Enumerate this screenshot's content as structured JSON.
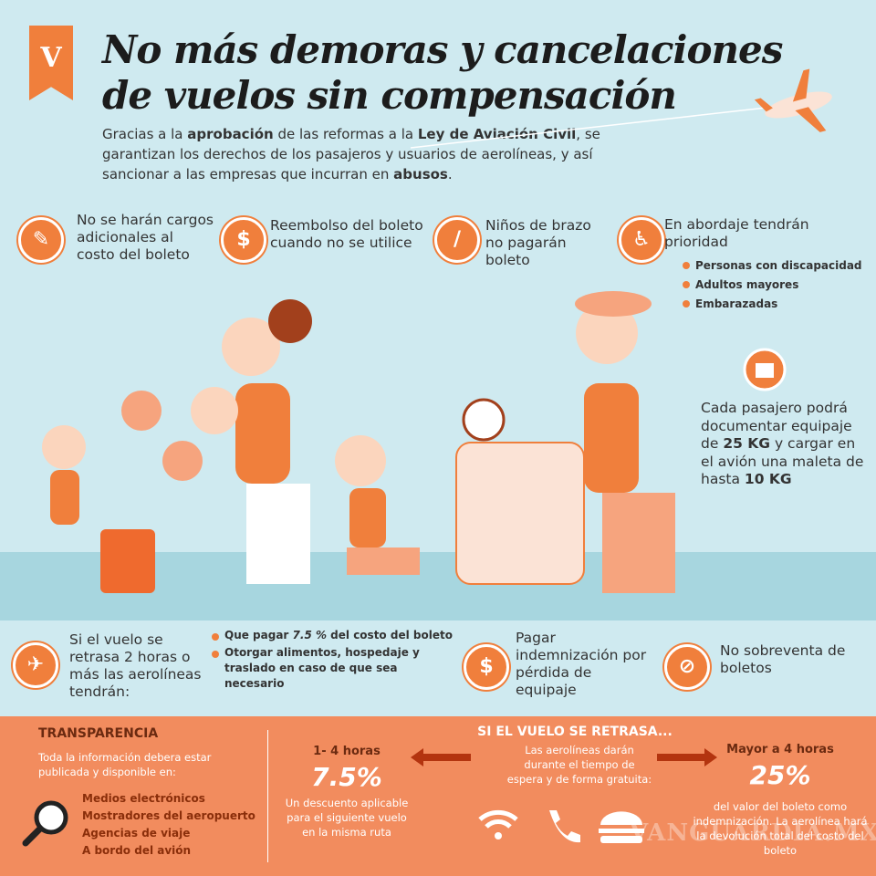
{
  "logo": "V",
  "header": {
    "title_lines": [
      "No más demoras y cancelaciones",
      "de vuelos sin compensación"
    ],
    "intro": [
      "Gracias a la ",
      "aprobación",
      " de las reformas a la ",
      "Ley de Aviación Civil",
      ", se garantizan los derechos de los pasajeros y usuarios de aerolíneas, y así sancionar a las empresas que incurran en ",
      "abusos",
      "."
    ]
  },
  "top_items": [
    {
      "text": "No se harán cargos adicionales al costo del boleto"
    },
    {
      "text": "Reembolso del boleto cuando no se utilice"
    },
    {
      "text": "Niños de brazo no pagarán boleto"
    },
    {
      "text": "En abordaje tendrán prioridad",
      "list": [
        "Personas con discapacidad",
        "Adultos mayores",
        "Embarazadas"
      ]
    }
  ],
  "baggage": [
    "Cada pasajero podrá documentar equipaje de ",
    "25 KG",
    " y cargar en el avión una maleta de hasta ",
    "10 KG"
  ],
  "bottom_items": [
    {
      "text": "Si el vuelo se retrasa 2 horas o más las aerolíneas tendrán:",
      "list": [
        [
          "Que pagar ",
          "7.5 %",
          " del costo del boleto"
        ],
        [
          "Otorgar alimentos, hospedaje y traslado en caso de que sea necesario"
        ]
      ]
    },
    {
      "text": "Pagar indemnización por pérdida de equipaje"
    },
    {
      "text": "No sobreventa de boletos"
    }
  ],
  "footer": {
    "transparency": {
      "title": "TRANSPARENCIA",
      "text": "Toda la información debera estar publicada y disponible en:",
      "list": [
        "Medios electrónicos",
        "Mostradores del aeropuerto",
        "Agencias de viaje",
        "A bordo del avión"
      ]
    },
    "delay": {
      "title": "SI EL VUELO SE RETRASA...",
      "short": {
        "label": "1- 4 horas",
        "value": "7.5%",
        "text": "Un descuento aplicable para el siguiente vuelo en la misma ruta"
      },
      "middle": "Las aerolíneas darán durante el tiempo de espera y de forma gratuita:",
      "long": {
        "label": "Mayor a 4 horas",
        "value": "25%",
        "text": "del valor del boleto como indemnización. La aerolínea hará la devolución total del costo del boleto"
      }
    },
    "watermark": "VANGUARDIA.MX"
  }
}
